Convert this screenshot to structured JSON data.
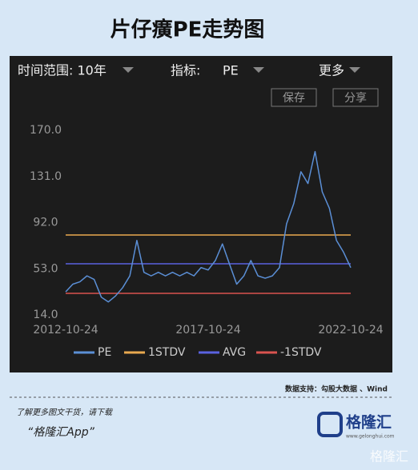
{
  "header": {
    "title": "片仔癀PE走势图"
  },
  "controls": {
    "range_label": "时间范围: 10年",
    "metric_label": "指标:",
    "metric_value": "PE",
    "more": "更多",
    "save": "保存",
    "share": "分享"
  },
  "chart_data": {
    "type": "line",
    "x": [
      "2012-10-24",
      "2013-01-24",
      "2013-04-24",
      "2013-07-24",
      "2013-10-24",
      "2014-01-24",
      "2014-04-24",
      "2014-07-24",
      "2014-10-24",
      "2015-01-24",
      "2015-04-24",
      "2015-07-24",
      "2015-10-24",
      "2016-01-24",
      "2016-04-24",
      "2016-07-24",
      "2016-10-24",
      "2017-01-24",
      "2017-04-24",
      "2017-07-24",
      "2017-10-24",
      "2018-01-24",
      "2018-04-24",
      "2018-07-24",
      "2018-10-24",
      "2019-01-24",
      "2019-04-24",
      "2019-07-24",
      "2019-10-24",
      "2020-01-24",
      "2020-04-24",
      "2020-07-24",
      "2020-10-24",
      "2021-01-24",
      "2021-04-24",
      "2021-07-24",
      "2021-10-24",
      "2022-01-24",
      "2022-04-24",
      "2022-07-24",
      "2022-10-24"
    ],
    "series": [
      {
        "name": "PE",
        "color": "#5b8fd6",
        "values": [
          33.5,
          40,
          42,
          47,
          44,
          29,
          25,
          30,
          37,
          47,
          77,
          50,
          47,
          50,
          47,
          50,
          47,
          50,
          47,
          54,
          52,
          60,
          74,
          57,
          40,
          47,
          60,
          47,
          45,
          47,
          54,
          91,
          108,
          135,
          125,
          152,
          118,
          104,
          77,
          67,
          54
        ]
      }
    ],
    "reference_lines": [
      {
        "name": "1STDV",
        "color": "#e9a94f",
        "value": 81.5
      },
      {
        "name": "AVG",
        "color": "#5a62e0",
        "value": 57.2
      },
      {
        "name": "-1STDV",
        "color": "#d9534f",
        "value": 32.2
      }
    ],
    "xlim": [
      "2012-10-24",
      "2022-10-24"
    ],
    "xticks": [
      "2012-10-24",
      "2017-10-24",
      "2022-10-24"
    ],
    "ylim": [
      14,
      170
    ],
    "yticks": [
      {
        "value": 14,
        "label": "14.0"
      },
      {
        "value": 53,
        "label": "53.0"
      },
      {
        "value": 92,
        "label": "92.0"
      },
      {
        "value": 131,
        "label": "131.0"
      },
      {
        "value": 170,
        "label": "170.0"
      }
    ],
    "grid": false
  },
  "footer": {
    "source": "数据支持：勾股大数据 、Wind",
    "prompt": "了解更多图文干货，请下载",
    "app": "“格隆汇App”",
    "logo": "格隆汇",
    "site": "www.gelonghui.com",
    "watermark": "格隆汇"
  }
}
